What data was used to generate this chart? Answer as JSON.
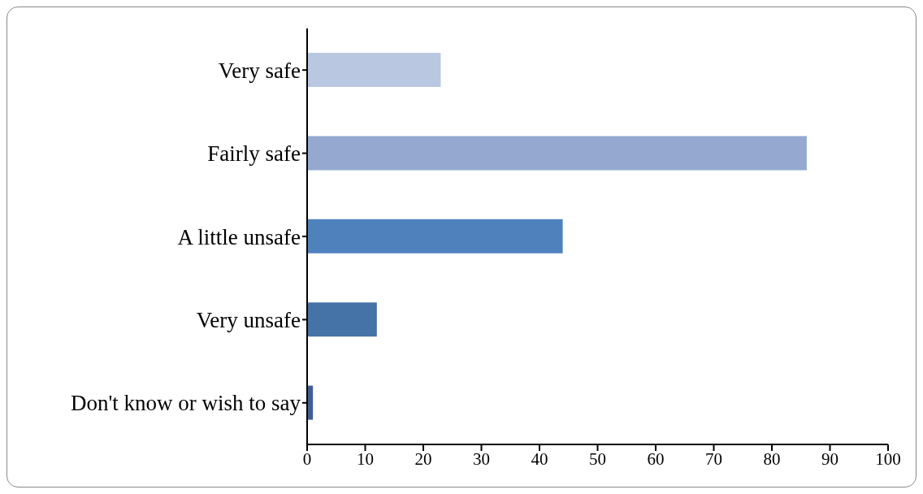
{
  "chart_data": {
    "type": "bar",
    "orientation": "horizontal",
    "categories": [
      "Very safe",
      "Fairly safe",
      "A little unsafe",
      "Very unsafe",
      "Don't know or wish to say"
    ],
    "values": [
      23,
      86,
      44,
      12,
      1
    ],
    "colors": [
      "#bac7e0",
      "#94a8d0",
      "#4f81bd",
      "#4572a7",
      "#3f5f94"
    ],
    "xlim": [
      0,
      100
    ],
    "xticks": [
      0,
      10,
      20,
      30,
      40,
      50,
      60,
      70,
      80,
      90,
      100
    ],
    "grid": false,
    "legend": false
  }
}
